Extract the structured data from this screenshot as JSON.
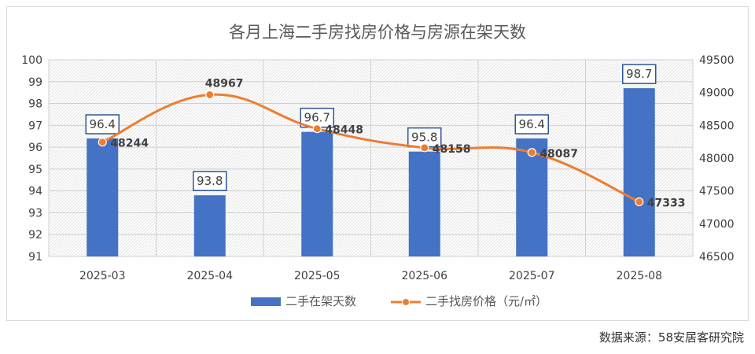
{
  "chart_data": {
    "type": "bar+line",
    "title": "各月上海二手房找房价格与房源在架天数",
    "categories": [
      "2025-03",
      "2025-04",
      "2025-05",
      "2025-06",
      "2025-07",
      "2025-08"
    ],
    "series": [
      {
        "name": "二手在架天数",
        "type": "bar",
        "axis": "left",
        "values": [
          96.4,
          93.8,
          96.7,
          95.8,
          96.4,
          98.7
        ]
      },
      {
        "name": "二手找房价格（元/㎡）",
        "type": "line",
        "axis": "right",
        "values": [
          48244,
          48967,
          48448,
          48158,
          48087,
          47333
        ]
      }
    ],
    "y_left": {
      "min": 91,
      "max": 100,
      "ticks": [
        "91",
        "92",
        "93",
        "94",
        "95",
        "96",
        "97",
        "98",
        "99",
        "100"
      ]
    },
    "y_right": {
      "min": 46500,
      "max": 49500,
      "ticks": [
        "46500",
        "47000",
        "47500",
        "48000",
        "48500",
        "49000",
        "49500"
      ]
    },
    "grid": true,
    "legend": "bottom-center",
    "colors": {
      "bar": "#4472c4",
      "line": "#ed7d31",
      "label_box": "#2e5597"
    }
  },
  "source_text": "数据来源：58安居客研究院"
}
